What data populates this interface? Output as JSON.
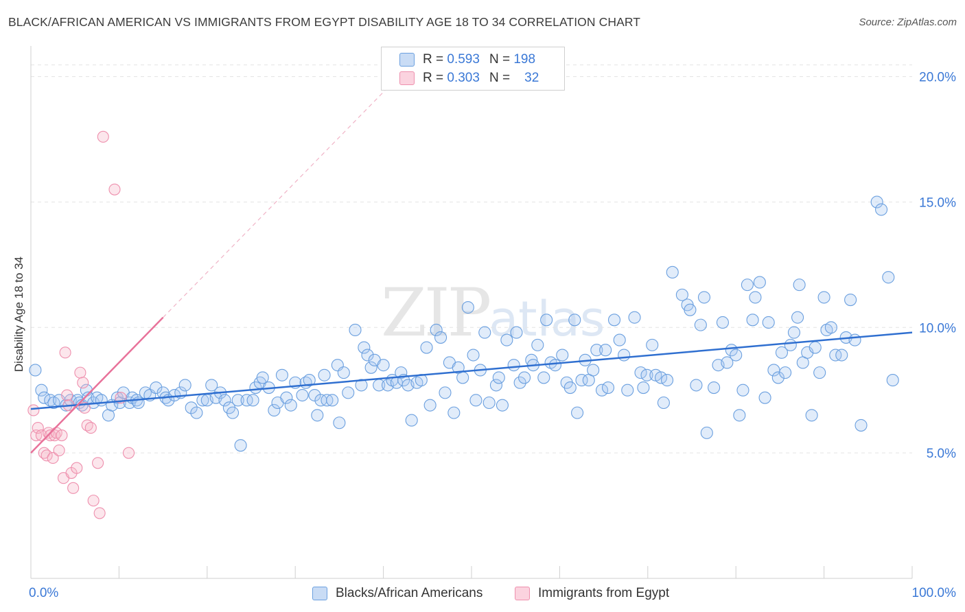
{
  "header": {
    "title": "BLACK/AFRICAN AMERICAN VS IMMIGRANTS FROM EGYPT DISABILITY AGE 18 TO 34 CORRELATION CHART",
    "source": "Source: ZipAtlas.com"
  },
  "watermark": {
    "zip": "ZIP",
    "atlas": "atlas"
  },
  "legend": {
    "rows": [
      {
        "r_label": "R =",
        "r_value": "0.593",
        "n_label": "N =",
        "n_value": "198",
        "color": "#a8c8f0"
      },
      {
        "r_label": "R =",
        "r_value": "0.303",
        "n_label": "N =",
        "n_value": "32",
        "color": "#f7b6c8"
      }
    ]
  },
  "bottom_legend": {
    "items": [
      {
        "label": "Blacks/African Americans",
        "color": "#a8c8f0"
      },
      {
        "label": "Immigrants from Egypt",
        "color": "#f7b6c8"
      }
    ]
  },
  "chart_data": {
    "type": "scatter",
    "title": "BLACK/AFRICAN AMERICAN VS IMMIGRANTS FROM EGYPT DISABILITY AGE 18 TO 34 CORRELATION CHART",
    "xlabel": "",
    "ylabel": "Disability Age 18 to 34",
    "xlim": [
      0,
      100
    ],
    "ylim": [
      0,
      21
    ],
    "x_tick_labels": [
      "0.0%",
      "100.0%"
    ],
    "y_ticks": [
      5,
      10,
      15,
      20
    ],
    "y_tick_labels": [
      "5.0%",
      "10.0%",
      "15.0%",
      "20.0%"
    ],
    "grid": true,
    "colors": {
      "blue": "#6a9fdf",
      "blue_line": "#2f6fd0",
      "pink": "#ee8fad",
      "pink_line": "#e8729a"
    },
    "series": [
      {
        "name": "Blacks/African Americans",
        "trend": {
          "x": [
            0,
            100
          ],
          "y": [
            6.75,
            9.8
          ]
        },
        "points": [
          [
            0.5,
            8.3
          ],
          [
            1.2,
            7.5
          ],
          [
            1.5,
            7.2
          ],
          [
            2.2,
            7.1
          ],
          [
            2.6,
            7.0
          ],
          [
            3.2,
            7.1
          ],
          [
            4.0,
            6.9
          ],
          [
            4.5,
            7.1
          ],
          [
            5.3,
            7.1
          ],
          [
            5.5,
            7.0
          ],
          [
            5.8,
            6.9
          ],
          [
            6.3,
            7.5
          ],
          [
            6.5,
            7.2
          ],
          [
            7.1,
            7.0
          ],
          [
            7.5,
            7.2
          ],
          [
            8.0,
            7.1
          ],
          [
            8.8,
            6.5
          ],
          [
            9.2,
            6.9
          ],
          [
            9.8,
            7.2
          ],
          [
            10.1,
            7.0
          ],
          [
            10.5,
            7.4
          ],
          [
            11.2,
            7.0
          ],
          [
            11.5,
            7.2
          ],
          [
            12.0,
            7.1
          ],
          [
            12.2,
            7.0
          ],
          [
            13.0,
            7.4
          ],
          [
            13.5,
            7.3
          ],
          [
            14.2,
            7.6
          ],
          [
            15.0,
            7.4
          ],
          [
            15.3,
            7.2
          ],
          [
            15.6,
            7.1
          ],
          [
            16.3,
            7.3
          ],
          [
            17.0,
            7.4
          ],
          [
            17.5,
            7.7
          ],
          [
            18.2,
            6.8
          ],
          [
            18.8,
            6.6
          ],
          [
            19.5,
            7.1
          ],
          [
            20.0,
            7.1
          ],
          [
            20.5,
            7.7
          ],
          [
            21.0,
            7.2
          ],
          [
            21.5,
            7.4
          ],
          [
            22.0,
            7.1
          ],
          [
            22.5,
            6.8
          ],
          [
            22.9,
            6.6
          ],
          [
            23.5,
            7.1
          ],
          [
            23.8,
            5.3
          ],
          [
            24.5,
            7.1
          ],
          [
            25.2,
            7.1
          ],
          [
            25.5,
            7.6
          ],
          [
            26.0,
            7.8
          ],
          [
            26.3,
            8.0
          ],
          [
            27.0,
            7.6
          ],
          [
            27.6,
            6.7
          ],
          [
            28.0,
            7.0
          ],
          [
            28.5,
            8.1
          ],
          [
            29.0,
            7.2
          ],
          [
            29.5,
            6.9
          ],
          [
            30.0,
            7.8
          ],
          [
            30.8,
            7.3
          ],
          [
            31.2,
            7.8
          ],
          [
            31.6,
            7.9
          ],
          [
            32.2,
            7.3
          ],
          [
            32.5,
            6.5
          ],
          [
            32.9,
            7.1
          ],
          [
            33.3,
            8.1
          ],
          [
            33.6,
            7.1
          ],
          [
            34.2,
            7.1
          ],
          [
            34.8,
            8.5
          ],
          [
            35.0,
            6.2
          ],
          [
            35.5,
            8.2
          ],
          [
            36.0,
            7.4
          ],
          [
            36.8,
            9.9
          ],
          [
            37.5,
            7.7
          ],
          [
            37.8,
            9.2
          ],
          [
            38.2,
            8.9
          ],
          [
            38.6,
            8.4
          ],
          [
            39.0,
            8.7
          ],
          [
            39.5,
            7.7
          ],
          [
            40.0,
            8.5
          ],
          [
            40.5,
            7.7
          ],
          [
            41.0,
            7.9
          ],
          [
            41.5,
            7.8
          ],
          [
            42.0,
            8.2
          ],
          [
            42.3,
            7.9
          ],
          [
            42.8,
            7.7
          ],
          [
            43.2,
            6.3
          ],
          [
            43.8,
            7.8
          ],
          [
            44.3,
            7.9
          ],
          [
            44.9,
            9.2
          ],
          [
            45.3,
            6.9
          ],
          [
            46.0,
            9.9
          ],
          [
            46.5,
            9.6
          ],
          [
            47.0,
            7.4
          ],
          [
            47.5,
            8.6
          ],
          [
            48.0,
            6.6
          ],
          [
            48.5,
            8.4
          ],
          [
            49.0,
            8.0
          ],
          [
            49.6,
            10.8
          ],
          [
            50.2,
            8.9
          ],
          [
            50.5,
            7.1
          ],
          [
            51.0,
            8.3
          ],
          [
            51.5,
            9.8
          ],
          [
            52.0,
            7.0
          ],
          [
            52.8,
            7.7
          ],
          [
            53.1,
            8.0
          ],
          [
            53.5,
            6.9
          ],
          [
            54.0,
            9.5
          ],
          [
            54.8,
            8.5
          ],
          [
            55.1,
            9.8
          ],
          [
            55.5,
            7.8
          ],
          [
            56.0,
            8.0
          ],
          [
            56.8,
            8.7
          ],
          [
            57.0,
            8.5
          ],
          [
            57.5,
            9.3
          ],
          [
            58.2,
            8.0
          ],
          [
            58.5,
            10.3
          ],
          [
            59.0,
            8.6
          ],
          [
            59.5,
            8.5
          ],
          [
            60.3,
            8.9
          ],
          [
            60.8,
            7.8
          ],
          [
            61.2,
            7.6
          ],
          [
            61.7,
            10.3
          ],
          [
            62.0,
            6.6
          ],
          [
            62.5,
            7.9
          ],
          [
            62.9,
            8.7
          ],
          [
            63.3,
            7.9
          ],
          [
            63.8,
            8.3
          ],
          [
            64.2,
            9.1
          ],
          [
            64.8,
            7.5
          ],
          [
            65.2,
            9.1
          ],
          [
            65.5,
            7.6
          ],
          [
            66.2,
            10.3
          ],
          [
            66.8,
            9.5
          ],
          [
            67.3,
            8.9
          ],
          [
            67.7,
            7.5
          ],
          [
            68.5,
            10.4
          ],
          [
            69.2,
            8.2
          ],
          [
            69.5,
            7.6
          ],
          [
            69.9,
            8.1
          ],
          [
            70.5,
            9.3
          ],
          [
            70.9,
            8.1
          ],
          [
            71.5,
            8.0
          ],
          [
            71.8,
            7.0
          ],
          [
            72.2,
            7.9
          ],
          [
            72.8,
            12.2
          ],
          [
            73.9,
            11.3
          ],
          [
            74.5,
            10.9
          ],
          [
            74.8,
            10.7
          ],
          [
            75.5,
            7.7
          ],
          [
            76.0,
            10.1
          ],
          [
            76.4,
            11.2
          ],
          [
            76.7,
            5.8
          ],
          [
            77.5,
            7.6
          ],
          [
            78.0,
            8.5
          ],
          [
            78.5,
            10.2
          ],
          [
            79.0,
            8.6
          ],
          [
            79.5,
            9.1
          ],
          [
            80.0,
            8.9
          ],
          [
            80.4,
            6.5
          ],
          [
            80.8,
            7.5
          ],
          [
            81.3,
            11.7
          ],
          [
            81.9,
            10.3
          ],
          [
            82.2,
            11.2
          ],
          [
            82.7,
            11.8
          ],
          [
            83.3,
            7.2
          ],
          [
            83.7,
            10.2
          ],
          [
            84.3,
            8.3
          ],
          [
            84.8,
            8.0
          ],
          [
            85.2,
            9.0
          ],
          [
            85.6,
            8.2
          ],
          [
            86.2,
            9.3
          ],
          [
            86.6,
            9.8
          ],
          [
            87.0,
            10.4
          ],
          [
            87.2,
            11.7
          ],
          [
            87.6,
            8.6
          ],
          [
            88.1,
            9.0
          ],
          [
            88.6,
            6.5
          ],
          [
            89.0,
            9.2
          ],
          [
            89.5,
            8.2
          ],
          [
            90.0,
            11.2
          ],
          [
            90.3,
            9.9
          ],
          [
            90.8,
            10.0
          ],
          [
            91.3,
            8.9
          ],
          [
            92.0,
            8.9
          ],
          [
            92.5,
            9.6
          ],
          [
            93.0,
            11.1
          ],
          [
            93.5,
            9.5
          ],
          [
            94.2,
            6.1
          ],
          [
            96.0,
            15.0
          ],
          [
            96.5,
            14.7
          ],
          [
            97.3,
            12.0
          ],
          [
            97.8,
            7.9
          ]
        ]
      },
      {
        "name": "Immigrants from Egypt",
        "trend": {
          "x": [
            0,
            15
          ],
          "y": [
            5.0,
            10.4
          ]
        },
        "trend_dashed": {
          "x": [
            15,
            42
          ],
          "y": [
            10.4,
            20.1
          ]
        },
        "points": [
          [
            0.3,
            6.7
          ],
          [
            0.6,
            5.7
          ],
          [
            0.8,
            6.0
          ],
          [
            1.2,
            5.7
          ],
          [
            1.5,
            5.0
          ],
          [
            1.8,
            4.9
          ],
          [
            2.0,
            5.8
          ],
          [
            2.2,
            5.7
          ],
          [
            2.5,
            4.8
          ],
          [
            2.7,
            5.7
          ],
          [
            2.9,
            5.8
          ],
          [
            3.2,
            5.1
          ],
          [
            3.5,
            5.7
          ],
          [
            3.7,
            4.0
          ],
          [
            3.9,
            9.0
          ],
          [
            4.1,
            7.3
          ],
          [
            4.3,
            6.9
          ],
          [
            4.6,
            4.2
          ],
          [
            4.8,
            3.6
          ],
          [
            5.2,
            4.4
          ],
          [
            5.6,
            8.2
          ],
          [
            5.9,
            7.8
          ],
          [
            6.1,
            6.8
          ],
          [
            6.4,
            6.1
          ],
          [
            6.8,
            6.0
          ],
          [
            7.1,
            3.1
          ],
          [
            7.6,
            4.6
          ],
          [
            7.8,
            2.6
          ],
          [
            8.2,
            17.6
          ],
          [
            9.5,
            15.5
          ],
          [
            10.2,
            7.2
          ],
          [
            11.1,
            5.0
          ]
        ]
      }
    ]
  }
}
